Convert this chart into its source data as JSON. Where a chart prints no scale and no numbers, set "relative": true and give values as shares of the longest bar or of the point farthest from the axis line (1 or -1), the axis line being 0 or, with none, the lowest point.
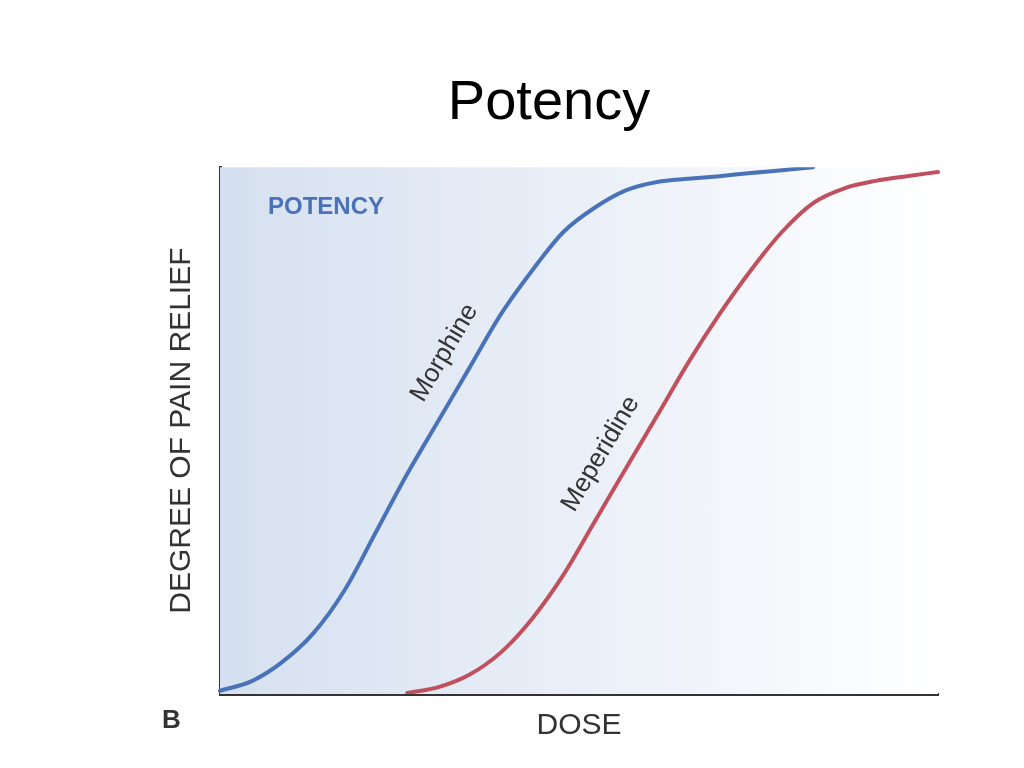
{
  "chart_data": {
    "type": "line",
    "title": "Potency",
    "xlabel": "DOSE",
    "ylabel": "DEGREE OF PAIN RELIEF",
    "relative": true,
    "annotations": [
      "POTENCY",
      "B"
    ],
    "categories": [
      null,
      null,
      null,
      null,
      null,
      null,
      null,
      null,
      null,
      null,
      null,
      null,
      null,
      null,
      null,
      null,
      null,
      null,
      null,
      null,
      null,
      null,
      null,
      null
    ],
    "series": [
      {
        "name": "Morphine",
        "color": "#4a72b8",
        "values": [
          0.006,
          0.024,
          0.061,
          0.116,
          0.198,
          0.308,
          0.418,
          0.519,
          0.62,
          0.721,
          0.804,
          0.877,
          0.923,
          0.956,
          0.972,
          0.978,
          0.983,
          0.989,
          0.994,
          1,
          null,
          null,
          null,
          null
        ]
      },
      {
        "name": "Meperidine",
        "color": "#c0505e",
        "values": [
          null,
          null,
          null,
          null,
          null,
          null,
          0.002,
          0.013,
          0.037,
          0.079,
          0.143,
          0.226,
          0.327,
          0.428,
          0.528,
          0.629,
          0.721,
          0.804,
          0.877,
          0.932,
          0.96,
          0.974,
          0.983,
          0.991
        ]
      }
    ],
    "grid": false,
    "legend": false,
    "marker": "none",
    "line_style": "solid"
  }
}
